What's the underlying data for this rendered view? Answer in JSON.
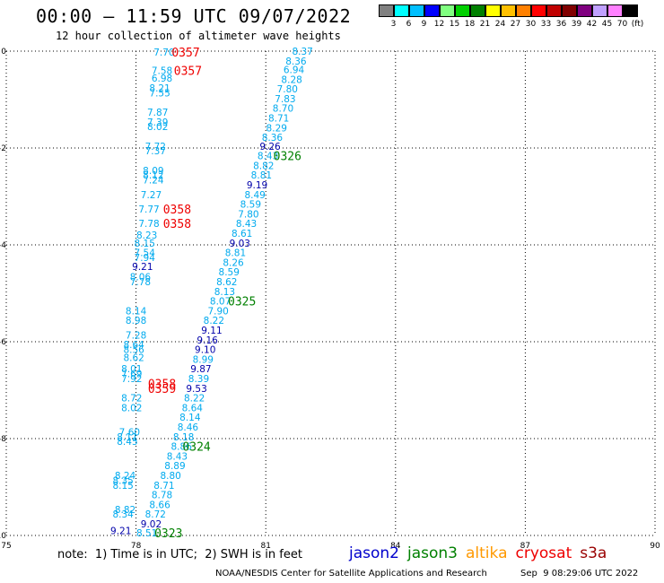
{
  "header": {
    "title": "00:00 – 11:59 UTC 09/07/2022",
    "subtitle": "12 hour collection of altimeter wave heights"
  },
  "colorbar": {
    "labels": [
      "3",
      "6",
      "9",
      "12",
      "15",
      "18",
      "21",
      "24",
      "27",
      "30",
      "33",
      "36",
      "39",
      "42",
      "45",
      "70",
      "(ft)"
    ],
    "colors": [
      "#808080",
      "#00ffff",
      "#00bfff",
      "#0000ff",
      "#80ff80",
      "#00d000",
      "#008000",
      "#ffff00",
      "#ffc000",
      "#ff8000",
      "#ff0000",
      "#c00000",
      "#800000",
      "#800080",
      "#c0a0ff",
      "#ff80ff",
      "#000000"
    ]
  },
  "footer": {
    "note": "note:  1) Time is in UTC;  2) SWH is in feet",
    "credit": "NOAA/NESDIS Center for Satellite Applications and Research",
    "timestamp": "Sep  9 08:29:06 UTC 2022"
  },
  "satellites": [
    {
      "name": "jason2",
      "color": "#0000cc"
    },
    {
      "name": "jason3",
      "color": "#008000"
    },
    {
      "name": "altika",
      "color": "#ff9900"
    },
    {
      "name": "cryosat",
      "color": "#ee0000"
    },
    {
      "name": "s3a",
      "color": "#990000"
    }
  ],
  "chart_data": {
    "type": "scatter",
    "title": "00:00 – 11:59 UTC 09/07/2022",
    "subtitle": "12 hour collection of altimeter wave heights",
    "xlabel": "",
    "ylabel": "",
    "xlim": [
      75,
      90
    ],
    "ylim": [
      -10,
      0
    ],
    "x_ticks": [
      75,
      78,
      81,
      84,
      87,
      90
    ],
    "x_tick_labels": [
      "75",
      "78",
      "81",
      "84",
      "87",
      "90"
    ],
    "y_ticks": [
      0,
      -2,
      -4,
      -6,
      -8,
      -10
    ],
    "y_tick_labels": [
      "0",
      "-2",
      "-4",
      "-6",
      "-8",
      "-10"
    ],
    "grid": true,
    "wave_height_labels": [
      {
        "x": 81.85,
        "y": 0.0,
        "text": "8.37",
        "color": "#00aaee"
      },
      {
        "x": 81.7,
        "y": -0.2,
        "text": "8.36",
        "color": "#00aaee"
      },
      {
        "x": 81.65,
        "y": -0.38,
        "text": "6.94",
        "color": "#00aaee"
      },
      {
        "x": 81.6,
        "y": -0.58,
        "text": "8.28",
        "color": "#00aaee"
      },
      {
        "x": 81.5,
        "y": -0.78,
        "text": "7.80",
        "color": "#00aaee"
      },
      {
        "x": 81.45,
        "y": -0.98,
        "text": "7.83",
        "color": "#00aaee"
      },
      {
        "x": 81.4,
        "y": -1.18,
        "text": "8.70",
        "color": "#00aaee"
      },
      {
        "x": 81.3,
        "y": -1.38,
        "text": "8.71",
        "color": "#00aaee"
      },
      {
        "x": 81.25,
        "y": -1.58,
        "text": "8.29",
        "color": "#00aaee"
      },
      {
        "x": 81.15,
        "y": -1.78,
        "text": "8.36",
        "color": "#00aaee"
      },
      {
        "x": 81.1,
        "y": -1.96,
        "text": "9.26",
        "color": "#0000aa"
      },
      {
        "x": 81.05,
        "y": -2.16,
        "text": "8.43",
        "color": "#00aaee"
      },
      {
        "x": 80.95,
        "y": -2.36,
        "text": "8.82",
        "color": "#00aaee"
      },
      {
        "x": 80.9,
        "y": -2.56,
        "text": "8.81",
        "color": "#00aaee"
      },
      {
        "x": 80.8,
        "y": -2.76,
        "text": "9.19",
        "color": "#0000aa"
      },
      {
        "x": 80.75,
        "y": -2.96,
        "text": "8.49",
        "color": "#00aaee"
      },
      {
        "x": 80.65,
        "y": -3.16,
        "text": "8.59",
        "color": "#00aaee"
      },
      {
        "x": 80.6,
        "y": -3.36,
        "text": "7.80",
        "color": "#00aaee"
      },
      {
        "x": 80.55,
        "y": -3.56,
        "text": "8.43",
        "color": "#00aaee"
      },
      {
        "x": 80.45,
        "y": -3.76,
        "text": "8.61",
        "color": "#00aaee"
      },
      {
        "x": 80.4,
        "y": -3.96,
        "text": "9.03",
        "color": "#0000aa"
      },
      {
        "x": 80.3,
        "y": -4.16,
        "text": "8.81",
        "color": "#00aaee"
      },
      {
        "x": 80.25,
        "y": -4.36,
        "text": "8.26",
        "color": "#00aaee"
      },
      {
        "x": 80.15,
        "y": -4.56,
        "text": "8.59",
        "color": "#00aaee"
      },
      {
        "x": 80.1,
        "y": -4.76,
        "text": "8.62",
        "color": "#00aaee"
      },
      {
        "x": 80.05,
        "y": -4.96,
        "text": "8.13",
        "color": "#00aaee"
      },
      {
        "x": 79.95,
        "y": -5.16,
        "text": "8.07",
        "color": "#00aaee"
      },
      {
        "x": 79.9,
        "y": -5.36,
        "text": "7.90",
        "color": "#00aaee"
      },
      {
        "x": 79.8,
        "y": -5.56,
        "text": "8.22",
        "color": "#00aaee"
      },
      {
        "x": 79.75,
        "y": -5.76,
        "text": "9.11",
        "color": "#0000aa"
      },
      {
        "x": 79.65,
        "y": -5.96,
        "text": "9.16",
        "color": "#0000aa"
      },
      {
        "x": 79.6,
        "y": -6.16,
        "text": "9.10",
        "color": "#0000aa"
      },
      {
        "x": 79.55,
        "y": -6.36,
        "text": "8.99",
        "color": "#00aaee"
      },
      {
        "x": 79.5,
        "y": -6.56,
        "text": "9.87",
        "color": "#0000aa"
      },
      {
        "x": 79.45,
        "y": -6.76,
        "text": "8.39",
        "color": "#00aaee"
      },
      {
        "x": 79.4,
        "y": -6.96,
        "text": "9.53",
        "color": "#0000aa"
      },
      {
        "x": 79.35,
        "y": -7.16,
        "text": "8.22",
        "color": "#00aaee"
      },
      {
        "x": 79.3,
        "y": -7.36,
        "text": "8.64",
        "color": "#00aaee"
      },
      {
        "x": 79.25,
        "y": -7.56,
        "text": "8.14",
        "color": "#00aaee"
      },
      {
        "x": 79.2,
        "y": -7.76,
        "text": "8.46",
        "color": "#00aaee"
      },
      {
        "x": 79.1,
        "y": -7.96,
        "text": "8.18",
        "color": "#00aaee"
      },
      {
        "x": 79.05,
        "y": -8.16,
        "text": "8.86",
        "color": "#00aaee"
      },
      {
        "x": 78.95,
        "y": -8.36,
        "text": "8.43",
        "color": "#00aaee"
      },
      {
        "x": 78.9,
        "y": -8.56,
        "text": "8.89",
        "color": "#00aaee"
      },
      {
        "x": 78.8,
        "y": -8.76,
        "text": "8.80",
        "color": "#00aaee"
      },
      {
        "x": 78.65,
        "y": -8.96,
        "text": "8.71",
        "color": "#00aaee"
      },
      {
        "x": 78.6,
        "y": -9.16,
        "text": "8.78",
        "color": "#00aaee"
      },
      {
        "x": 78.55,
        "y": -9.36,
        "text": "8.66",
        "color": "#00aaee"
      },
      {
        "x": 78.45,
        "y": -9.56,
        "text": "8.72",
        "color": "#00aaee"
      },
      {
        "x": 78.35,
        "y": -9.76,
        "text": "9.02",
        "color": "#0000aa"
      },
      {
        "x": 78.25,
        "y": -9.94,
        "text": "8.51",
        "color": "#00aaee"
      },
      {
        "x": 77.65,
        "y": -9.9,
        "text": "9.21",
        "color": "#0000aa"
      },
      {
        "x": 77.75,
        "y": -9.46,
        "text": "8.82",
        "color": "#00aaee"
      },
      {
        "x": 77.7,
        "y": -9.56,
        "text": "8.34",
        "color": "#00aaee"
      },
      {
        "x": 77.75,
        "y": -8.76,
        "text": "8.24",
        "color": "#00aaee"
      },
      {
        "x": 77.7,
        "y": -8.86,
        "text": "8.35",
        "color": "#00aaee"
      },
      {
        "x": 77.7,
        "y": -8.96,
        "text": "8.15",
        "color": "#00aaee"
      },
      {
        "x": 77.85,
        "y": -7.86,
        "text": "7.60",
        "color": "#00aaee"
      },
      {
        "x": 77.8,
        "y": -7.96,
        "text": "8.11",
        "color": "#00aaee"
      },
      {
        "x": 77.8,
        "y": -8.06,
        "text": "8.45",
        "color": "#00aaee"
      },
      {
        "x": 77.9,
        "y": -7.16,
        "text": "8.72",
        "color": "#00aaee"
      },
      {
        "x": 77.9,
        "y": -7.36,
        "text": "8.02",
        "color": "#00aaee"
      },
      {
        "x": 77.9,
        "y": -6.56,
        "text": "8.01",
        "color": "#00aaee"
      },
      {
        "x": 77.9,
        "y": -6.66,
        "text": "7.69",
        "color": "#00aaee"
      },
      {
        "x": 77.9,
        "y": -6.76,
        "text": "7.92",
        "color": "#00aaee"
      },
      {
        "x": 77.95,
        "y": -6.06,
        "text": "8.64",
        "color": "#00aaee"
      },
      {
        "x": 77.95,
        "y": -6.16,
        "text": "8.56",
        "color": "#00aaee"
      },
      {
        "x": 77.95,
        "y": -6.32,
        "text": "8.62",
        "color": "#00aaee"
      },
      {
        "x": 78.0,
        "y": -5.36,
        "text": "8.14",
        "color": "#00aaee"
      },
      {
        "x": 78.0,
        "y": -5.56,
        "text": "8.98",
        "color": "#00aaee"
      },
      {
        "x": 78.0,
        "y": -5.86,
        "text": "7.28",
        "color": "#00aaee"
      },
      {
        "x": 78.1,
        "y": -4.66,
        "text": "8.06",
        "color": "#00aaee"
      },
      {
        "x": 78.1,
        "y": -4.76,
        "text": "7.78",
        "color": "#00aaee"
      },
      {
        "x": 78.2,
        "y": -3.96,
        "text": "8.15",
        "color": "#00aaee"
      },
      {
        "x": 78.2,
        "y": -4.16,
        "text": "7.54",
        "color": "#00aaee"
      },
      {
        "x": 78.2,
        "y": -4.26,
        "text": "7.94",
        "color": "#00aaee"
      },
      {
        "x": 78.15,
        "y": -4.44,
        "text": "9.21",
        "color": "#0000aa"
      },
      {
        "x": 78.3,
        "y": -3.56,
        "text": "7.78",
        "color": "#00aaee"
      },
      {
        "x": 78.25,
        "y": -3.8,
        "text": "8.23",
        "color": "#00aaee"
      },
      {
        "x": 78.3,
        "y": -3.26,
        "text": "7.77",
        "color": "#00aaee"
      },
      {
        "x": 78.35,
        "y": -2.96,
        "text": "7.27",
        "color": "#00aaee"
      },
      {
        "x": 78.4,
        "y": -2.46,
        "text": "8.09",
        "color": "#00aaee"
      },
      {
        "x": 78.4,
        "y": -2.56,
        "text": "8.12",
        "color": "#00aaee"
      },
      {
        "x": 78.4,
        "y": -2.66,
        "text": "7.24",
        "color": "#00aaee"
      },
      {
        "x": 78.45,
        "y": -1.96,
        "text": "7.72",
        "color": "#00aaee"
      },
      {
        "x": 78.45,
        "y": -2.06,
        "text": "7.37",
        "color": "#00aaee"
      },
      {
        "x": 78.5,
        "y": -1.26,
        "text": "7.87",
        "color": "#00aaee"
      },
      {
        "x": 78.5,
        "y": -1.46,
        "text": "7.39",
        "color": "#00aaee"
      },
      {
        "x": 78.5,
        "y": -1.56,
        "text": "8.02",
        "color": "#00aaee"
      },
      {
        "x": 78.55,
        "y": -0.76,
        "text": "8.21",
        "color": "#00aaee"
      },
      {
        "x": 78.55,
        "y": -0.86,
        "text": "7.55",
        "color": "#00aaee"
      },
      {
        "x": 78.6,
        "y": -0.4,
        "text": "7.58",
        "color": "#00aaee"
      },
      {
        "x": 78.6,
        "y": -0.56,
        "text": "6.98",
        "color": "#00aaee"
      },
      {
        "x": 78.65,
        "y": -0.02,
        "text": "7.70",
        "color": "#00aaee"
      }
    ],
    "pass_labels": [
      {
        "x": 79.15,
        "y": -0.02,
        "text": "0357",
        "color": "#ee0000"
      },
      {
        "x": 79.2,
        "y": -0.4,
        "text": "0357",
        "color": "#ee0000"
      },
      {
        "x": 78.95,
        "y": -3.26,
        "text": "0358",
        "color": "#ee0000"
      },
      {
        "x": 78.95,
        "y": -3.56,
        "text": "0358",
        "color": "#ee0000"
      },
      {
        "x": 78.6,
        "y": -6.86,
        "text": "0358",
        "color": "#ee0000"
      },
      {
        "x": 78.6,
        "y": -6.96,
        "text": "0359",
        "color": "#ee0000"
      },
      {
        "x": 81.5,
        "y": -2.16,
        "text": "0326",
        "color": "#008000"
      },
      {
        "x": 80.45,
        "y": -5.16,
        "text": "0325",
        "color": "#008000"
      },
      {
        "x": 79.4,
        "y": -8.16,
        "text": "0324",
        "color": "#008000"
      },
      {
        "x": 78.75,
        "y": -9.94,
        "text": "0323",
        "color": "#008000"
      }
    ]
  }
}
